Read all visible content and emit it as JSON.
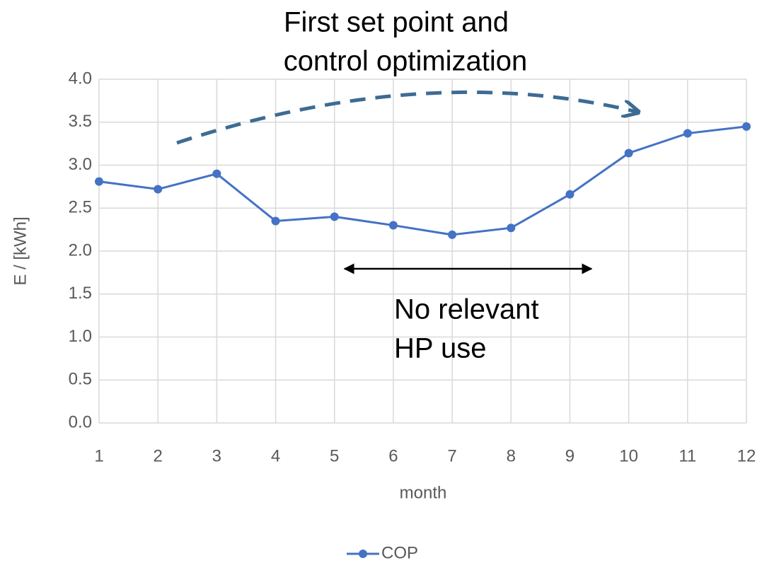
{
  "chart_data": {
    "type": "line",
    "x": [
      1,
      2,
      3,
      4,
      5,
      6,
      7,
      8,
      9,
      10,
      11,
      12
    ],
    "xlim": [
      1,
      12
    ],
    "xticks": [
      1,
      2,
      3,
      4,
      5,
      6,
      7,
      8,
      9,
      10,
      11,
      12
    ],
    "ylim": [
      0,
      4
    ],
    "yticks": [
      {
        "value": 0,
        "label": "0.0"
      },
      {
        "value": 0.5,
        "label": "0.5"
      },
      {
        "value": 1,
        "label": "1.0"
      },
      {
        "value": 1.5,
        "label": "1.5"
      },
      {
        "value": 2,
        "label": "2.0"
      },
      {
        "value": 2.5,
        "label": "2.5"
      },
      {
        "value": 3,
        "label": "3.0"
      },
      {
        "value": 3.5,
        "label": "3.5"
      },
      {
        "value": 4,
        "label": "4.0"
      }
    ],
    "xlabel": "month",
    "ylabel": "E / [kWh]",
    "grid": true,
    "legend": "bottom",
    "series": [
      {
        "name": "COP",
        "color": "#4472c4",
        "values": [
          2.81,
          2.72,
          2.9,
          2.35,
          2.4,
          2.3,
          2.19,
          2.27,
          2.66,
          3.14,
          3.37,
          3.45
        ]
      }
    ],
    "annotations": [
      {
        "lines": [
          "First set point and",
          "control optimization"
        ]
      },
      {
        "lines": [
          "No relevant",
          "HP use"
        ]
      }
    ]
  }
}
